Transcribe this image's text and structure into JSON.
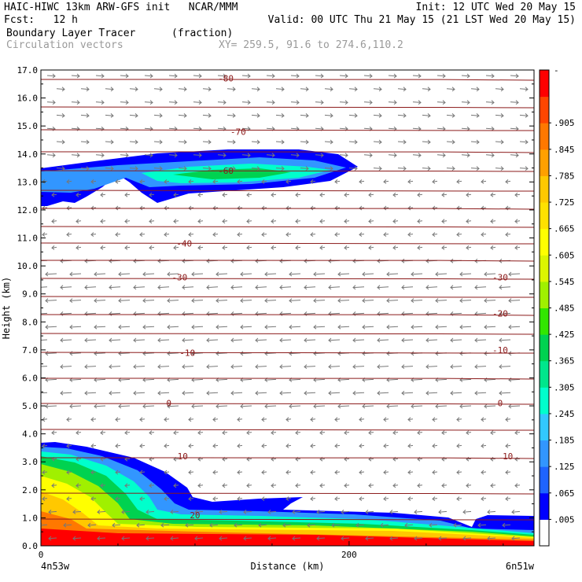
{
  "header": {
    "line1_left": "HAIC-HIWC 13km ARW-GFS init   NCAR/MMM",
    "line1_right": "Init: 12 UTC Wed 20 May 15",
    "line2_left": "Fcst:   12 h",
    "line2_right": "Valid: 00 UTC Thu 21 May 15 (21 LST Wed 20 May 15)",
    "line3_field": "Boundary Layer Tracer",
    "line3_units": "(fraction)",
    "line4_vectors": "Circulation vectors",
    "line4_xy": "XY= 259.5, 91.6 to 274.6,110.2"
  },
  "chart_data": {
    "type": "area",
    "title": "Boundary Layer Tracer",
    "units": "(fraction)",
    "xlabel": "Distance (km)",
    "ylabel": "Height (km)",
    "xlim": [
      0,
      320
    ],
    "ylim": [
      0,
      17
    ],
    "x_ticks": [
      {
        "value": 0,
        "label": "0"
      },
      {
        "value": 200,
        "label": "200"
      }
    ],
    "x_endpoint_labels": {
      "left": "4n53w",
      "right": "6n51w"
    },
    "y_ticks": [
      "0.0",
      "1.0",
      "2.0",
      "3.0",
      "4.0",
      "5.0",
      "6.0",
      "7.0",
      "8.0",
      "9.0",
      "10.0",
      "11.0",
      "12.0",
      "13.0",
      "14.0",
      "15.0",
      "16.0",
      "17.0"
    ],
    "colorbar": {
      "labels": [
        ".905",
        ".845",
        ".785",
        ".725",
        ".665",
        ".605",
        ".545",
        ".485",
        ".425",
        ".365",
        ".305",
        ".245",
        ".185",
        ".125",
        ".065",
        ".005"
      ],
      "top_label": "-",
      "colors": [
        "#ffffff",
        "#0000ff",
        "#1e64ff",
        "#3296ff",
        "#32c8ff",
        "#00ffcc",
        "#00e68c",
        "#00d250",
        "#32e600",
        "#a0f000",
        "#dcf500",
        "#ffff00",
        "#ffe100",
        "#ffc800",
        "#ffa000",
        "#ff7800",
        "#ff4600",
        "#ff0000"
      ]
    },
    "temperature_contours": {
      "color": "#8b1a1a",
      "levels": [
        {
          "label": "-80",
          "x": 120,
          "height": 16.7
        },
        {
          "label": "-70",
          "x": 128,
          "height": 14.8
        },
        {
          "label": "-60",
          "x": 120,
          "height": 13.4
        },
        {
          "label": "-40",
          "x": 93,
          "height": 10.8
        },
        {
          "label": "-30",
          "x": 90,
          "height": 9.6
        },
        {
          "label": "-30",
          "x": 298,
          "height": 9.6
        },
        {
          "label": "-20",
          "x": 298,
          "height": 8.3
        },
        {
          "label": "-10",
          "x": 95,
          "height": 6.9
        },
        {
          "label": "-10",
          "x": 298,
          "height": 7.0
        },
        {
          "label": "0",
          "x": 83,
          "height": 5.1
        },
        {
          "label": "0",
          "x": 298,
          "height": 5.1
        },
        {
          "label": "10",
          "x": 92,
          "height": 3.2
        },
        {
          "label": "10",
          "x": 303,
          "height": 3.2
        },
        {
          "label": "20",
          "x": 100,
          "height": 1.1
        }
      ]
    },
    "tracer_regions": [
      {
        "name": "upper_plume",
        "level_index": 1
      },
      {
        "name": "boundary_layer",
        "level_index": 17
      }
    ]
  }
}
